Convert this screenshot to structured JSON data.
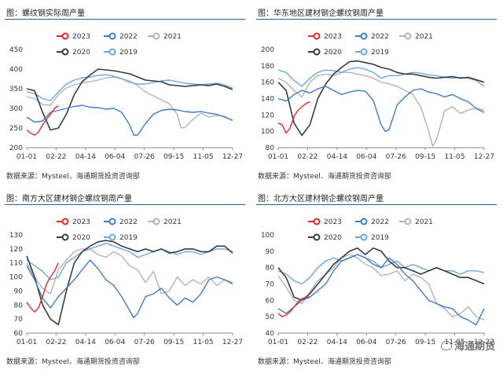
{
  "colors": {
    "2023": "#e8262a",
    "2022": "#3d7cc9",
    "2021": "#b3b3b3",
    "2020": "#3a3a3a",
    "2019": "#6aa7e0"
  },
  "x_ticks": [
    "01-01",
    "02-22",
    "04-14",
    "06-04",
    "07-26",
    "09-15",
    "11-05",
    "12-27"
  ],
  "watermark": "海通期货",
  "chart_data": [
    {
      "type": "line",
      "title": "图：螺纹钢实际周产量",
      "source": "数据来源：Mysteel、海通期货投资咨询部",
      "ylim": [
        200,
        450
      ],
      "y_ticks": [
        "200",
        "250",
        "300",
        "350",
        "400",
        "450"
      ],
      "x": [
        1,
        53
      ],
      "series": [
        {
          "name": "2023",
          "x": [
            1,
            2,
            3,
            4,
            5,
            6,
            7,
            8,
            9
          ],
          "values": [
            245,
            237,
            232,
            240,
            258,
            272,
            285,
            300,
            307
          ]
        },
        {
          "name": "2022",
          "x": [
            1,
            3,
            5,
            7,
            9,
            11,
            13,
            15,
            17,
            19,
            21,
            23,
            25,
            27,
            28,
            29,
            31,
            33,
            35,
            37,
            39,
            41,
            43,
            45,
            47,
            49,
            51,
            53
          ],
          "values": [
            278,
            265,
            268,
            290,
            295,
            300,
            305,
            308,
            303,
            302,
            298,
            300,
            290,
            258,
            232,
            232,
            262,
            285,
            295,
            298,
            296,
            292,
            290,
            292,
            288,
            285,
            278,
            270
          ]
        },
        {
          "name": "2021",
          "x": [
            1,
            3,
            5,
            7,
            9,
            11,
            13,
            15,
            17,
            19,
            21,
            23,
            25,
            27,
            29,
            31,
            33,
            35,
            37,
            39,
            40,
            41,
            43,
            45,
            47,
            49,
            51,
            53
          ],
          "values": [
            330,
            325,
            310,
            308,
            335,
            352,
            360,
            365,
            368,
            372,
            378,
            380,
            375,
            370,
            358,
            342,
            332,
            322,
            312,
            285,
            250,
            252,
            272,
            288,
            278,
            282,
            280,
            268
          ]
        },
        {
          "name": "2020",
          "x": [
            1,
            3,
            5,
            7,
            9,
            11,
            13,
            15,
            17,
            19,
            21,
            23,
            25,
            27,
            29,
            31,
            33,
            35,
            37,
            39,
            41,
            43,
            45,
            47,
            49,
            51,
            53
          ],
          "values": [
            350,
            345,
            290,
            245,
            250,
            285,
            335,
            368,
            385,
            400,
            398,
            396,
            392,
            388,
            380,
            372,
            370,
            368,
            360,
            358,
            356,
            358,
            360,
            358,
            362,
            356,
            348
          ]
        },
        {
          "name": "2019",
          "x": [
            1,
            3,
            5,
            7,
            9,
            11,
            13,
            15,
            17,
            19,
            21,
            23,
            25,
            27,
            29,
            31,
            33,
            35,
            37,
            39,
            41,
            43,
            45,
            47,
            49,
            51,
            53
          ],
          "values": [
            342,
            338,
            325,
            320,
            342,
            362,
            372,
            378,
            380,
            384,
            386,
            382,
            376,
            366,
            362,
            362,
            366,
            370,
            372,
            368,
            364,
            362,
            360,
            362,
            364,
            360,
            352
          ]
        }
      ]
    },
    {
      "type": "line",
      "title": "图：华东地区建材钢企螺纹钢周产量",
      "source": "数据来源：Mysteel、海通期货投资咨询部",
      "ylim": [
        80,
        200
      ],
      "y_ticks": [
        "80",
        "100",
        "120",
        "140",
        "160",
        "180",
        "200"
      ],
      "x": [
        1,
        53
      ],
      "series": [
        {
          "name": "2023",
          "x": [
            1,
            2,
            3,
            4,
            5,
            6,
            7,
            8,
            9
          ],
          "values": [
            110,
            108,
            98,
            104,
            118,
            126,
            130,
            134,
            136
          ]
        },
        {
          "name": "2022",
          "x": [
            1,
            3,
            5,
            7,
            9,
            11,
            13,
            15,
            17,
            19,
            21,
            23,
            25,
            27,
            28,
            29,
            31,
            33,
            35,
            37,
            39,
            41,
            43,
            45,
            47,
            49,
            51,
            53
          ],
          "values": [
            140,
            137,
            145,
            150,
            147,
            152,
            155,
            150,
            145,
            148,
            150,
            149,
            138,
            108,
            100,
            102,
            132,
            142,
            150,
            152,
            148,
            146,
            142,
            145,
            140,
            136,
            128,
            123
          ]
        },
        {
          "name": "2021",
          "x": [
            1,
            3,
            5,
            7,
            9,
            11,
            13,
            15,
            17,
            19,
            21,
            23,
            25,
            27,
            29,
            31,
            33,
            35,
            37,
            39,
            40,
            41,
            43,
            45,
            47,
            49,
            51,
            53
          ],
          "values": [
            165,
            160,
            150,
            142,
            160,
            168,
            170,
            168,
            172,
            172,
            170,
            168,
            165,
            160,
            158,
            155,
            150,
            145,
            130,
            100,
            82,
            90,
            125,
            130,
            122,
            126,
            128,
            126
          ]
        },
        {
          "name": "2020",
          "x": [
            1,
            3,
            5,
            7,
            9,
            11,
            13,
            15,
            17,
            19,
            21,
            23,
            25,
            27,
            29,
            31,
            33,
            35,
            37,
            39,
            41,
            43,
            45,
            47,
            49,
            51,
            53
          ],
          "values": [
            160,
            150,
            110,
            95,
            108,
            140,
            158,
            170,
            178,
            185,
            186,
            184,
            182,
            178,
            176,
            172,
            170,
            170,
            168,
            166,
            165,
            166,
            167,
            165,
            166,
            163,
            160
          ]
        },
        {
          "name": "2019",
          "x": [
            1,
            3,
            5,
            7,
            9,
            11,
            13,
            15,
            17,
            19,
            21,
            23,
            25,
            27,
            29,
            31,
            33,
            35,
            37,
            39,
            41,
            43,
            45,
            47,
            49,
            51,
            53
          ],
          "values": [
            175,
            172,
            162,
            155,
            165,
            172,
            175,
            174,
            172,
            176,
            178,
            176,
            172,
            165,
            168,
            168,
            170,
            172,
            171,
            169,
            168,
            166,
            165,
            166,
            165,
            162,
            155
          ]
        }
      ]
    },
    {
      "type": "line",
      "title": "图：南方大区建材钢企螺纹钢周产量",
      "source": "数据来源：Mysteel、海通期货投资咨询部",
      "ylim": [
        60,
        130
      ],
      "y_ticks": [
        "60",
        "70",
        "80",
        "90",
        "100",
        "110",
        "120",
        "130"
      ],
      "x": [
        1,
        53
      ],
      "series": [
        {
          "name": "2023",
          "x": [
            1,
            2,
            3,
            4,
            5,
            6,
            7,
            8,
            9
          ],
          "values": [
            82,
            78,
            75,
            78,
            86,
            95,
            100,
            104,
            110
          ]
        },
        {
          "name": "2022",
          "x": [
            1,
            3,
            5,
            7,
            9,
            11,
            13,
            15,
            17,
            19,
            21,
            23,
            25,
            27,
            28,
            29,
            31,
            33,
            35,
            37,
            39,
            41,
            43,
            45,
            47,
            49,
            51,
            53
          ],
          "values": [
            108,
            98,
            85,
            78,
            86,
            92,
            98,
            105,
            112,
            106,
            98,
            94,
            86,
            76,
            71,
            74,
            86,
            88,
            92,
            85,
            80,
            85,
            82,
            88,
            98,
            100,
            98,
            95
          ]
        },
        {
          "name": "2021",
          "x": [
            1,
            3,
            5,
            7,
            9,
            11,
            13,
            15,
            17,
            19,
            21,
            23,
            25,
            27,
            29,
            31,
            33,
            35,
            37,
            39,
            41,
            43,
            45,
            47,
            49,
            51,
            53
          ],
          "values": [
            110,
            100,
            92,
            88,
            105,
            112,
            118,
            120,
            120,
            116,
            114,
            118,
            115,
            108,
            105,
            96,
            104,
            88,
            90,
            100,
            94,
            98,
            95,
            100,
            94,
            98,
            96
          ]
        },
        {
          "name": "2020",
          "x": [
            1,
            3,
            5,
            7,
            9,
            11,
            13,
            15,
            17,
            19,
            21,
            23,
            25,
            27,
            29,
            31,
            33,
            35,
            37,
            39,
            41,
            43,
            45,
            47,
            49,
            51,
            53
          ],
          "values": [
            115,
            100,
            80,
            70,
            66,
            90,
            110,
            118,
            122,
            125,
            126,
            125,
            122,
            120,
            118,
            120,
            118,
            120,
            117,
            118,
            120,
            120,
            118,
            118,
            122,
            122,
            117
          ]
        },
        {
          "name": "2019",
          "x": [
            1,
            3,
            5,
            7,
            9,
            11,
            13,
            15,
            17,
            19,
            21,
            23,
            25,
            27,
            29,
            31,
            33,
            35,
            37,
            39,
            41,
            43,
            45,
            47,
            49,
            51,
            53
          ],
          "values": [
            112,
            108,
            104,
            98,
            100,
            110,
            114,
            118,
            120,
            122,
            124,
            122,
            120,
            118,
            114,
            116,
            118,
            120,
            118,
            116,
            118,
            118,
            116,
            118,
            120,
            120,
            118
          ]
        }
      ]
    },
    {
      "type": "line",
      "title": "图：北方大区建材钢企螺纹钢周产量",
      "source": "数据来源：Mysteel、海通期货投资咨询部",
      "ylim": [
        40,
        100
      ],
      "y_ticks": [
        "40",
        "50",
        "60",
        "70",
        "80",
        "90",
        "100"
      ],
      "x": [
        1,
        53
      ],
      "series": [
        {
          "name": "2023",
          "x": [
            1,
            2,
            3,
            4,
            5,
            6,
            7,
            8,
            9
          ],
          "values": [
            52,
            50,
            51,
            53,
            56,
            59,
            61,
            62,
            62
          ]
        },
        {
          "name": "2022",
          "x": [
            1,
            3,
            5,
            7,
            9,
            11,
            13,
            15,
            17,
            19,
            21,
            23,
            25,
            27,
            29,
            31,
            33,
            35,
            37,
            39,
            41,
            43,
            45,
            47,
            49,
            51,
            53
          ],
          "values": [
            55,
            52,
            56,
            60,
            62,
            66,
            70,
            78,
            84,
            86,
            88,
            86,
            82,
            80,
            86,
            82,
            76,
            72,
            66,
            60,
            58,
            56,
            55,
            50,
            48,
            45,
            55
          ]
        },
        {
          "name": "2021",
          "x": [
            1,
            3,
            5,
            7,
            9,
            11,
            13,
            15,
            17,
            19,
            21,
            23,
            25,
            27,
            29,
            31,
            33,
            35,
            37,
            39,
            41,
            43,
            45,
            47,
            49,
            51,
            53
          ],
          "values": [
            75,
            68,
            60,
            58,
            65,
            72,
            76,
            80,
            86,
            88,
            86,
            82,
            80,
            75,
            76,
            78,
            72,
            76,
            74,
            70,
            58,
            55,
            50,
            52,
            56,
            50,
            48
          ]
        },
        {
          "name": "2020",
          "x": [
            1,
            3,
            5,
            7,
            9,
            11,
            13,
            15,
            17,
            19,
            21,
            23,
            25,
            27,
            29,
            31,
            33,
            35,
            37,
            39,
            41,
            43,
            45,
            47,
            49,
            51,
            53
          ],
          "values": [
            80,
            74,
            62,
            60,
            64,
            70,
            76,
            82,
            86,
            90,
            92,
            88,
            92,
            90,
            84,
            80,
            80,
            78,
            76,
            78,
            80,
            78,
            76,
            74,
            74,
            72,
            70
          ]
        },
        {
          "name": "2019",
          "x": [
            1,
            3,
            5,
            7,
            9,
            11,
            13,
            15,
            17,
            19,
            21,
            23,
            25,
            27,
            29,
            31,
            33,
            35,
            37,
            39,
            41,
            43,
            45,
            47,
            49,
            51,
            53
          ],
          "values": [
            78,
            76,
            72,
            70,
            74,
            80,
            84,
            86,
            84,
            86,
            88,
            86,
            84,
            80,
            82,
            84,
            80,
            82,
            80,
            78,
            80,
            78,
            78,
            76,
            78,
            78,
            77
          ]
        }
      ]
    }
  ]
}
